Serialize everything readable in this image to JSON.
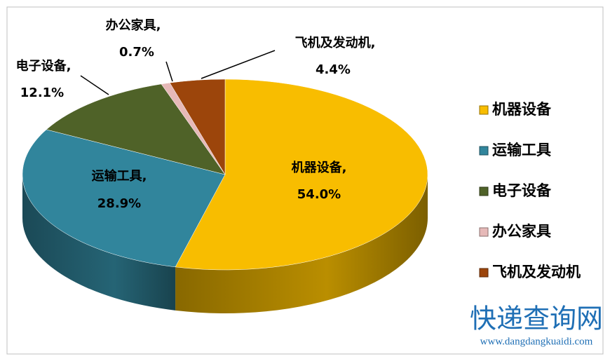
{
  "chart_data": {
    "type": "pie3d",
    "categories": [
      "机器设备",
      "运输工具",
      "电子设备",
      "办公家具",
      "飞机及发动机"
    ],
    "label_names": [
      "机器设备,",
      "运输工具,",
      "电子设备,",
      "办公家具,",
      "飞机及发动机,"
    ],
    "values": [
      54.0,
      28.9,
      12.1,
      0.7,
      4.4
    ],
    "value_labels": [
      "54.0%",
      "28.9%",
      "12.1%",
      "0.7%",
      "4.4%"
    ],
    "colors": [
      "#f8bd00",
      "#31859c",
      "#4f6228",
      "#e6b9b8",
      "#9c450b"
    ],
    "legend": "right"
  },
  "watermark": {
    "title": "快递查询网",
    "url": "www.dangdangkuaidi.com"
  }
}
